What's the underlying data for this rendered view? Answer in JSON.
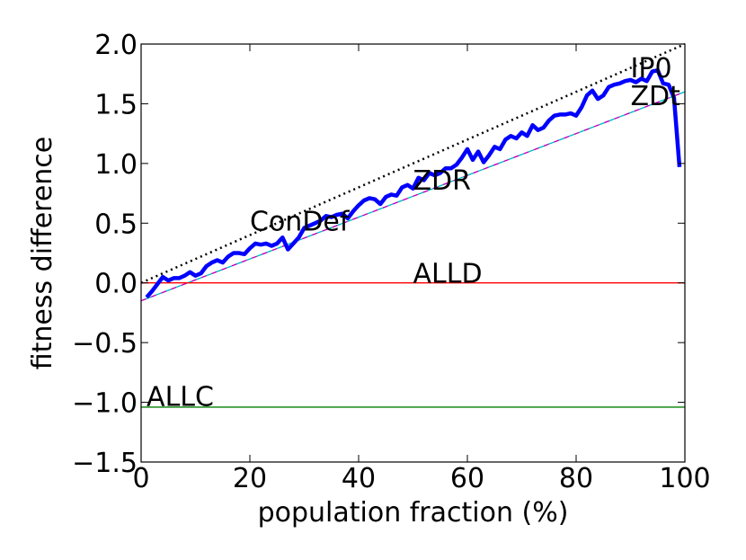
{
  "chart_data": {
    "type": "line",
    "title": "",
    "xlabel": "population fraction (%)",
    "ylabel": "fitness difference",
    "xlim": [
      0,
      100
    ],
    "ylim": [
      -1.5,
      2.0
    ],
    "xticks": [
      0,
      20,
      40,
      60,
      80,
      100
    ],
    "xtick_labels": [
      "0",
      "20",
      "40",
      "60",
      "80",
      "100"
    ],
    "yticks": [
      -1.5,
      -1.0,
      -0.5,
      0.0,
      0.5,
      1.0,
      1.5,
      2.0
    ],
    "ytick_labels": [
      "−1.5",
      "−1.0",
      "−0.5",
      "0.0",
      "0.5",
      "1.0",
      "1.5",
      "2.0"
    ],
    "grid": false,
    "series": [
      {
        "name": "",
        "color": "#0000ff",
        "style": "solid-thick",
        "x": [
          1,
          2,
          3,
          4,
          5,
          6,
          7,
          8,
          9,
          10,
          11,
          12,
          13,
          14,
          15,
          16,
          17,
          18,
          19,
          20,
          21,
          22,
          23,
          24,
          25,
          26,
          27,
          28,
          29,
          30,
          31,
          32,
          33,
          34,
          35,
          36,
          37,
          38,
          39,
          40,
          41,
          42,
          43,
          44,
          45,
          46,
          47,
          48,
          49,
          50,
          51,
          52,
          53,
          54,
          55,
          56,
          57,
          58,
          59,
          60,
          61,
          62,
          63,
          64,
          65,
          66,
          67,
          68,
          69,
          70,
          71,
          72,
          73,
          74,
          75,
          76,
          77,
          78,
          79,
          80,
          81,
          82,
          83,
          84,
          85,
          86,
          87,
          88,
          89,
          90,
          91,
          92,
          93,
          94,
          95,
          96,
          97,
          98,
          99
        ],
        "y": [
          -0.12,
          -0.07,
          -0.01,
          0.05,
          0.02,
          0.04,
          0.04,
          0.06,
          0.09,
          0.06,
          0.08,
          0.14,
          0.17,
          0.19,
          0.17,
          0.22,
          0.25,
          0.25,
          0.24,
          0.29,
          0.33,
          0.32,
          0.33,
          0.31,
          0.33,
          0.38,
          0.28,
          0.33,
          0.38,
          0.46,
          0.48,
          0.5,
          0.52,
          0.56,
          0.55,
          0.57,
          0.58,
          0.54,
          0.6,
          0.65,
          0.69,
          0.71,
          0.7,
          0.66,
          0.72,
          0.74,
          0.73,
          0.8,
          0.82,
          0.79,
          0.88,
          0.86,
          0.92,
          0.9,
          0.92,
          0.96,
          0.96,
          0.99,
          1.05,
          1.12,
          1.03,
          1.1,
          1.01,
          1.07,
          1.14,
          1.12,
          1.2,
          1.23,
          1.21,
          1.26,
          1.23,
          1.32,
          1.28,
          1.3,
          1.36,
          1.4,
          1.41,
          1.41,
          1.42,
          1.4,
          1.47,
          1.57,
          1.61,
          1.54,
          1.57,
          1.64,
          1.66,
          1.67,
          1.69,
          1.7,
          1.68,
          1.71,
          1.69,
          1.77,
          1.78,
          1.67,
          1.66,
          1.55,
          0.97
        ]
      },
      {
        "name": "",
        "color": "#000000",
        "style": "dotted",
        "x": [
          0,
          100
        ],
        "y": [
          0.0,
          2.0
        ]
      },
      {
        "name": "",
        "color": "#bf00bf",
        "color2": "#00bfbf",
        "style": "dashed-pair",
        "x": [
          0,
          100
        ],
        "y": [
          -0.15,
          1.6
        ]
      },
      {
        "name": "",
        "color": "#ff0000",
        "style": "solid",
        "x": [
          0,
          100
        ],
        "y": [
          0.0,
          0.0
        ]
      },
      {
        "name": "",
        "color": "#008000",
        "style": "solid",
        "x": [
          0,
          100
        ],
        "y": [
          -1.04,
          -1.04
        ]
      }
    ],
    "annotations": [
      {
        "text": "IP0",
        "x": 90,
        "y": 1.72
      },
      {
        "text": "ZDt",
        "x": 90,
        "y": 1.49
      },
      {
        "text": "ZDR",
        "x": 50,
        "y": 0.78
      },
      {
        "text": "ConDef",
        "x": 20,
        "y": 0.44
      },
      {
        "text": "ALLD",
        "x": 50,
        "y": 0.0
      },
      {
        "text": "ALLC",
        "x": 1,
        "y": -1.03
      }
    ]
  }
}
